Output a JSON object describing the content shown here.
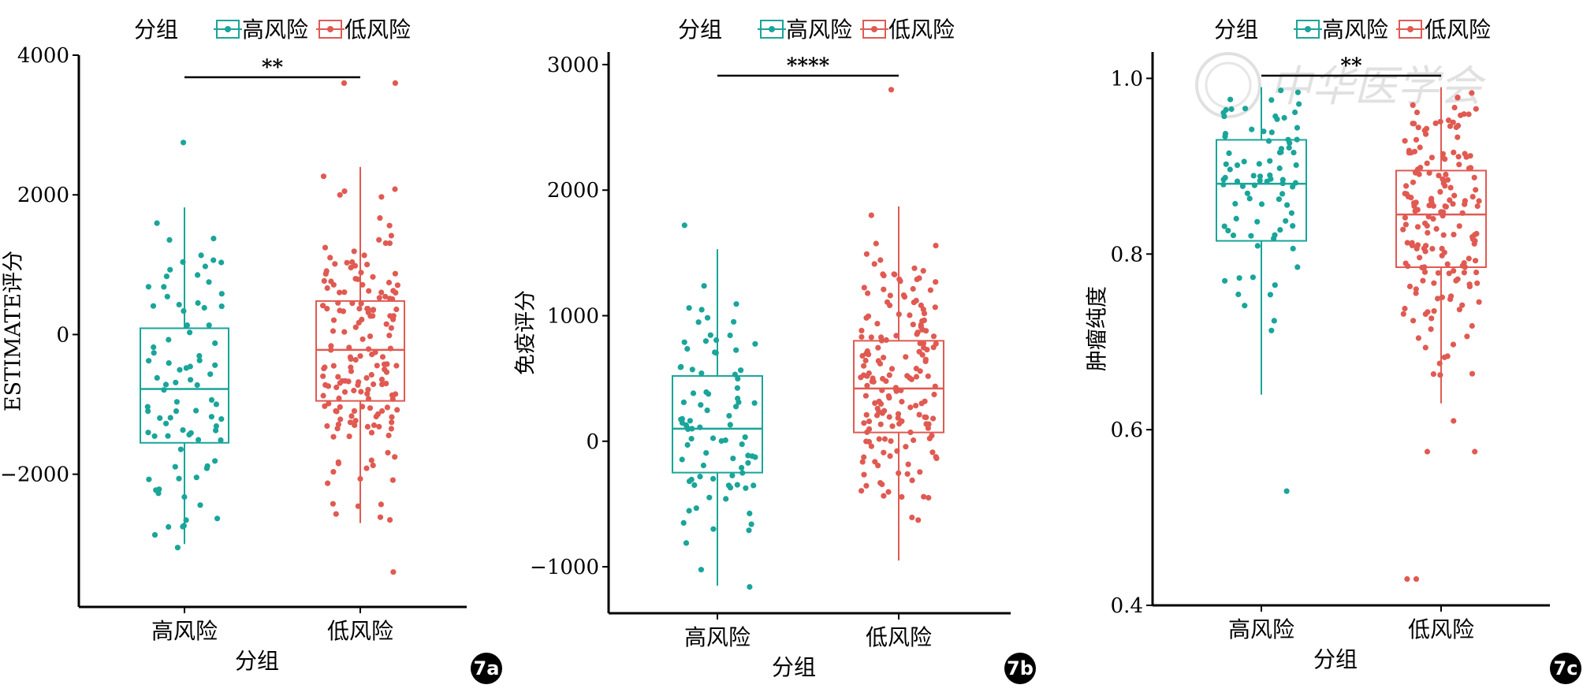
{
  "figure_labels": [
    "7a",
    "7b",
    "7c"
  ],
  "legend": {
    "title": "分组",
    "items": [
      "高风险",
      "低风险"
    ]
  },
  "colors": {
    "high": "#1aa59a",
    "low": "#e05a52",
    "axis": "#000000"
  },
  "watermark": "中华医学会",
  "chart_data": [
    {
      "type": "box",
      "panel": "7a",
      "categories": [
        "高风险",
        "低风险"
      ],
      "xlabel": "分组",
      "ylabel": "ESTIMATE评分",
      "ylim": [
        -3900,
        4000
      ],
      "yticks": [
        -2000,
        0,
        2000,
        4000
      ],
      "ytick_labels": [
        "−2000",
        "0",
        "2000",
        "4000"
      ],
      "significance": "**",
      "boxes": [
        {
          "name": "高风险",
          "whisker_low": -3000,
          "q1": -1550,
          "median": -780,
          "q3": 90,
          "whisker_high": 1820
        },
        {
          "name": "低风险",
          "whisker_low": -2700,
          "q1": -950,
          "median": -220,
          "q3": 480,
          "whisker_high": 2400
        }
      ],
      "points": [
        {
          "name": "高风险",
          "n": 85,
          "extra": [
            2750,
            -3050
          ]
        },
        {
          "name": "低风险",
          "n": 175,
          "extra": [
            3600,
            3600,
            -3400
          ]
        }
      ]
    },
    {
      "type": "box",
      "panel": "7b",
      "categories": [
        "高风险",
        "低风险"
      ],
      "xlabel": "分组",
      "ylabel": "免疫评分",
      "ylim": [
        -1370,
        3100
      ],
      "yticks": [
        -1000,
        0,
        1000,
        2000,
        3000
      ],
      "ytick_labels": [
        "−1000",
        "0",
        "1000",
        "2000",
        "3000"
      ],
      "significance": "****",
      "boxes": [
        {
          "name": "高风险",
          "whisker_low": -1150,
          "q1": -250,
          "median": 100,
          "q3": 520,
          "whisker_high": 1530
        },
        {
          "name": "低风险",
          "whisker_low": -950,
          "q1": 70,
          "median": 420,
          "q3": 800,
          "whisker_high": 1870
        }
      ],
      "points": [
        {
          "name": "高风险",
          "n": 85,
          "extra": [
            1720,
            -1160
          ]
        },
        {
          "name": "低风险",
          "n": 175,
          "extra": [
            2800
          ]
        }
      ]
    },
    {
      "type": "box",
      "panel": "7c",
      "categories": [
        "高风险",
        "低风险"
      ],
      "xlabel": "分组",
      "ylabel": "肿瘤纯度",
      "ylim": [
        0.4,
        1.03
      ],
      "yticks": [
        0.4,
        0.6,
        0.8,
        1.0
      ],
      "ytick_labels": [
        "0.4",
        "0.6",
        "0.8",
        "1.0"
      ],
      "significance": "**",
      "boxes": [
        {
          "name": "高风险",
          "whisker_low": 0.64,
          "q1": 0.815,
          "median": 0.88,
          "q3": 0.93,
          "whisker_high": 0.99
        },
        {
          "name": "低风险",
          "whisker_low": 0.63,
          "q1": 0.785,
          "median": 0.845,
          "q3": 0.895,
          "whisker_high": 0.99
        }
      ],
      "points": [
        {
          "name": "高风险",
          "n": 85,
          "extra": [
            0.53
          ]
        },
        {
          "name": "低风险",
          "n": 175,
          "extra": [
            0.43,
            0.43,
            0.575,
            0.575,
            0.61
          ]
        }
      ]
    }
  ]
}
